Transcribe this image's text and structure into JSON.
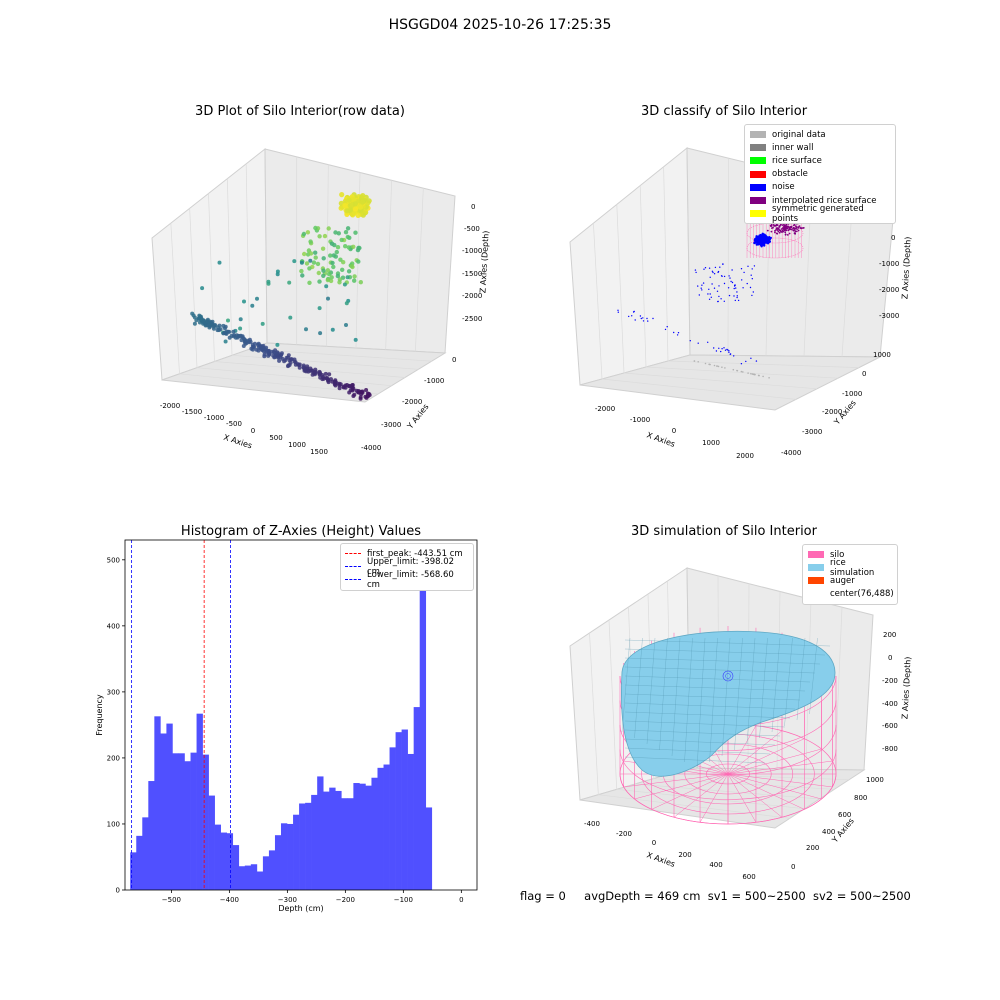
{
  "suptitle": "HSGGD04 2025-10-26 17:25:35",
  "footer": {
    "flag": "flag = 0",
    "avg": "avgDepth = 469 cm",
    "sv1": "sv1 = 500~2500",
    "sv2": "sv2 = 500~2500"
  },
  "panel1": {
    "title": "3D Plot of Silo Interior(row data)",
    "xlabel": "X Axies",
    "ylabel": "Y Axies",
    "zlabel": "Z Axies (Depth)",
    "xticks": [
      "-2000",
      "-1500",
      "-1000",
      "-500",
      "0",
      "500",
      "1000",
      "1500"
    ],
    "yticks": [
      "0",
      "-1000",
      "-2000",
      "-3000",
      "-4000"
    ],
    "zticks": [
      "0",
      "-500",
      "-1000",
      "-1500",
      "-2000",
      "-2500"
    ]
  },
  "panel2": {
    "title": "3D classify of Silo Interior",
    "xlabel": "X Axies",
    "ylabel": "Y Axies",
    "zlabel": "Z Axies (Depth)",
    "xticks": [
      "-2000",
      "-1000",
      "0",
      "1000",
      "2000"
    ],
    "yticks": [
      "1000",
      "0",
      "-1000",
      "-2000",
      "-3000",
      "-4000"
    ],
    "zticks": [
      "0",
      "-1000",
      "-2000",
      "-3000"
    ],
    "legend": [
      {
        "label": "original data",
        "color": "#b3b3b3"
      },
      {
        "label": "inner wall",
        "color": "#808080"
      },
      {
        "label": "rice surface",
        "color": "#00ff00"
      },
      {
        "label": "obstacle",
        "color": "#ff0000"
      },
      {
        "label": "noise",
        "color": "#0000ff"
      },
      {
        "label": "interpolated rice surface",
        "color": "#800080"
      },
      {
        "label": "symmetric generated points",
        "color": "#ffff00"
      }
    ]
  },
  "panel4": {
    "title": "3D simulation of Silo Interior",
    "xlabel": "X Axies",
    "ylabel": "Y Axies",
    "zlabel": "Z Axies (Depth)",
    "xticks": [
      "-400",
      "-200",
      "0",
      "200",
      "400",
      "600"
    ],
    "yticks": [
      "0",
      "200",
      "400",
      "600",
      "800",
      "1000"
    ],
    "zticks": [
      "200",
      "0",
      "-200",
      "-400",
      "-600",
      "-800"
    ],
    "legend": [
      {
        "label": "silo",
        "color": "#ff69b4"
      },
      {
        "label": "rice simulation",
        "color": "#87ceeb"
      },
      {
        "label": "auger",
        "color": "#ff4500"
      },
      {
        "label": "center(76,488)",
        "color": "none"
      }
    ]
  },
  "chart_data": [
    {
      "type": "scatter",
      "title": "3D Plot of Silo Interior(row data)",
      "xlabel": "X Axies",
      "ylabel": "Y Axies",
      "zlabel": "Z Axies (Depth)",
      "xlim": [
        -2200,
        1800
      ],
      "ylim": [
        -4200,
        200
      ],
      "zlim": [
        -3000,
        100
      ],
      "grid": true,
      "clusters": [
        {
          "x": -200,
          "y": 0,
          "z": 0,
          "n": 200
        },
        {
          "x": -700,
          "y": -600,
          "z": -900,
          "n": 90
        },
        {
          "x": -1800,
          "y": -3000,
          "z": -2400,
          "n": 140
        },
        {
          "x": 1000,
          "y": -3200,
          "z": -2700,
          "n": 70
        }
      ]
    },
    {
      "type": "scatter",
      "title": "3D classify of Silo Interior",
      "xlabel": "X Axies",
      "ylabel": "Y Axies",
      "zlabel": "Z Axies (Depth)",
      "xlim": [
        -2600,
        2400
      ],
      "ylim": [
        -4300,
        1300
      ],
      "zlim": [
        -3600,
        300
      ],
      "grid": true,
      "legend_position": "top-right",
      "series": [
        {
          "name": "original data",
          "color": "#b3b3b3"
        },
        {
          "name": "inner wall",
          "color": "#808080"
        },
        {
          "name": "rice surface",
          "color": "#00ff00"
        },
        {
          "name": "obstacle",
          "color": "#ff0000"
        },
        {
          "name": "noise",
          "color": "#0000ff"
        },
        {
          "name": "interpolated rice surface",
          "color": "#800080"
        },
        {
          "name": "symmetric generated points",
          "color": "#ffff00"
        }
      ]
    },
    {
      "type": "bar",
      "title": "Histogram of Z-Axies (Height) Values",
      "xlabel": "Depth (cm)",
      "ylabel": "Frequency",
      "xlim": [
        -580,
        27
      ],
      "ylim": [
        0,
        530
      ],
      "xticks": [
        -500,
        -400,
        -300,
        -200,
        -100,
        0
      ],
      "yticks": [
        0,
        100,
        200,
        300,
        400,
        500
      ],
      "bin_start": -571,
      "bin_width": 10.4,
      "values": [
        57,
        82,
        110,
        165,
        263,
        237,
        252,
        207,
        207,
        195,
        208,
        267,
        205,
        143,
        99,
        87,
        86,
        68,
        36,
        37,
        39,
        28,
        51,
        60,
        83,
        101,
        100,
        114,
        131,
        132,
        144,
        172,
        149,
        155,
        150,
        139,
        139,
        162,
        161,
        158,
        170,
        185,
        190,
        216,
        239,
        243,
        206,
        277,
        500,
        125
      ],
      "color": "#5050ff",
      "legend_position": "top-right",
      "lines": [
        {
          "name": "first_peak: -443.51 cm",
          "x": -443.51,
          "color": "#ff0000"
        },
        {
          "name": "Upper_limit: -398.02 cm",
          "x": -398.02,
          "color": "#0000ff"
        },
        {
          "name": "Lower_limit: -568.60 cm",
          "x": -568.6,
          "color": "#0000ff"
        }
      ]
    },
    {
      "type": "surface",
      "title": "3D simulation of Silo Interior",
      "xlabel": "X Axies",
      "ylabel": "Y Axies",
      "zlabel": "Z Axies (Depth)",
      "xlim": [
        -500,
        700
      ],
      "ylim": [
        -100,
        1100
      ],
      "zlim": [
        -900,
        300
      ],
      "grid": true,
      "legend_position": "top-right",
      "series": [
        {
          "name": "silo",
          "color": "#ff69b4"
        },
        {
          "name": "rice simulation",
          "color": "#87ceeb"
        },
        {
          "name": "auger",
          "color": "#ff4500"
        }
      ]
    }
  ]
}
